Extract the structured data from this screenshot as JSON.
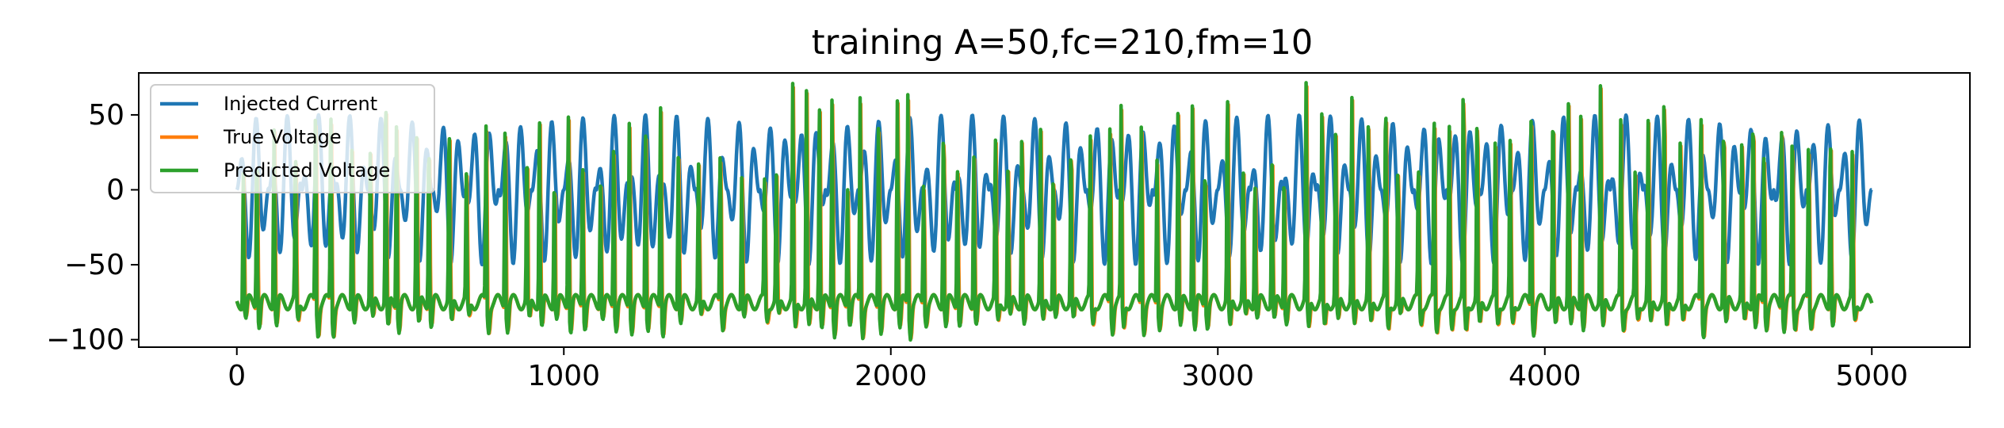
{
  "chart_data": {
    "type": "line",
    "title": "training A=50,fc=210,fm=10",
    "xlabel": "",
    "ylabel": "",
    "xlim": [
      -300,
      5300
    ],
    "ylim": [
      -105,
      78
    ],
    "xticks": [
      0,
      1000,
      2000,
      3000,
      4000,
      5000
    ],
    "xtick_labels": [
      "0",
      "1000",
      "2000",
      "3000",
      "4000",
      "5000"
    ],
    "yticks": [
      -100,
      -50,
      0,
      50
    ],
    "ytick_labels": [
      "−100",
      "−50",
      "0",
      "50"
    ],
    "grid": false,
    "legend_position": "top-left",
    "x_range": [
      0,
      5000
    ],
    "series": [
      {
        "name": "Injected Current",
        "color": "#1f77b4",
        "description_values": {
          "baseline": 0,
          "envelope_amplitude": 50,
          "carrier_period": 47.6,
          "modulation_period": 100,
          "start_value": 0,
          "end_value": -1
        }
      },
      {
        "name": "True Voltage",
        "color": "#ff7f0e",
        "description_values": {
          "resting_level": -75,
          "spike_peak": 67,
          "trough": -97,
          "start_value": -65,
          "end_value": -65
        }
      },
      {
        "name": "Predicted Voltage",
        "color": "#2ca02c",
        "description_values": {
          "resting_level": -75,
          "spike_peak": 70,
          "trough": -98,
          "start_value": -72,
          "end_value": -73
        }
      }
    ]
  }
}
